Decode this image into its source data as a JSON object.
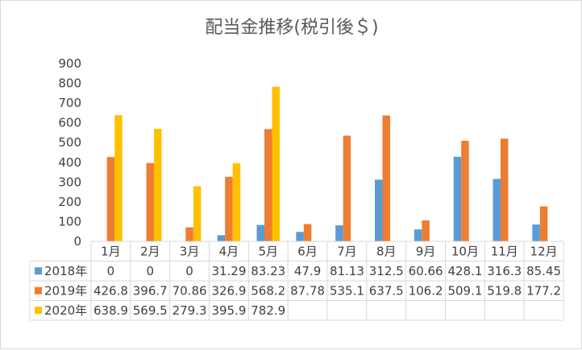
{
  "chart_data": {
    "type": "bar",
    "title": "配当金推移(税引後＄)",
    "categories": [
      "1月",
      "2月",
      "3月",
      "4月",
      "5月",
      "6月",
      "7月",
      "8月",
      "9月",
      "10月",
      "11月",
      "12月"
    ],
    "ylim": [
      0,
      900
    ],
    "yticks": [
      0,
      100,
      200,
      300,
      400,
      500,
      600,
      700,
      800,
      900
    ],
    "grid": false,
    "legend": "data-table",
    "series": [
      {
        "name": "2018年",
        "color": "#5b9bd5",
        "values": [
          0,
          0,
          0,
          31.29,
          83.23,
          47.9,
          81.13,
          312.5,
          60.66,
          428.1,
          316.3,
          85.45
        ],
        "labels": [
          "0",
          "0",
          "0",
          "31.29",
          "83.23",
          "47.9",
          "81.13",
          "312.5",
          "60.66",
          "428.1",
          "316.3",
          "85.45"
        ]
      },
      {
        "name": "2019年",
        "color": "#ed7d31",
        "values": [
          426.8,
          396.7,
          70.86,
          326.9,
          568.2,
          87.78,
          535.1,
          637.5,
          106.2,
          509.1,
          519.8,
          177.2
        ],
        "labels": [
          "426.8",
          "396.7",
          "70.86",
          "326.9",
          "568.2",
          "87.78",
          "535.1",
          "637.5",
          "106.2",
          "509.1",
          "519.8",
          "177.2"
        ]
      },
      {
        "name": "2020年",
        "color": "#ffc000",
        "values": [
          638.9,
          569.5,
          279.3,
          395.9,
          782.9,
          null,
          null,
          null,
          null,
          null,
          null,
          null
        ],
        "labels": [
          "638.9",
          "569.5",
          "279.3",
          "395.9",
          "782.9",
          "",
          "",
          "",
          "",
          "",
          "",
          ""
        ]
      }
    ]
  }
}
